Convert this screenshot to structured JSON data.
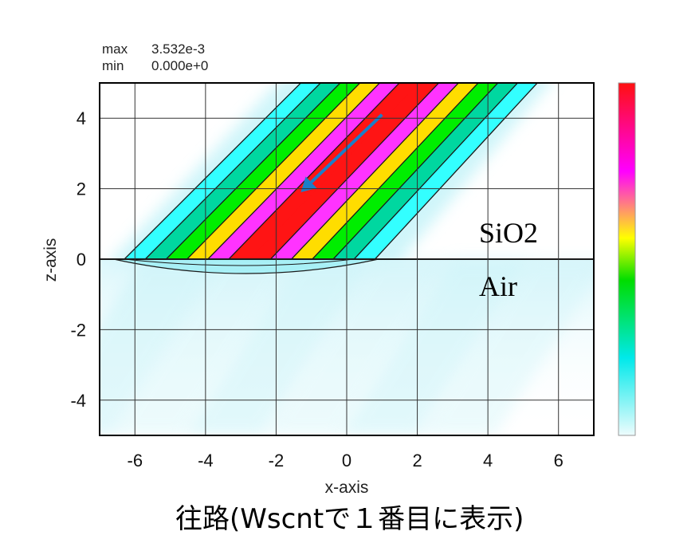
{
  "header": {
    "max_label": "max",
    "max_value": "3.532e-3",
    "min_label": "min",
    "min_value": "0.000e+0"
  },
  "annotations": {
    "upper_region": "SiO2",
    "lower_region": "Air"
  },
  "caption": "往路(Wscntで１番目に表示)",
  "chart_data": {
    "type": "heatmap",
    "xlabel": "x-axis",
    "ylabel": "z-axis",
    "xlim": [
      -7,
      7
    ],
    "ylim": [
      -5,
      5
    ],
    "x_ticks": [
      -6,
      -4,
      -2,
      0,
      2,
      4,
      6
    ],
    "y_ticks": [
      4,
      2,
      0,
      -2,
      -4
    ],
    "grid": true,
    "colorbar": {
      "min": 0.0,
      "max": 0.003532,
      "colors": [
        "#e8fbfd",
        "#00eaea",
        "#00dd00",
        "#ffff00",
        "#ff00ff",
        "#ff1010"
      ]
    },
    "interface_z": 0,
    "beam": {
      "direction": "incident from upper right toward lower left",
      "bottom_x_range": [
        -6.3,
        0.8
      ],
      "top_x_range": [
        -1.3,
        5.4
      ],
      "top_z": 5,
      "bottom_z": 0,
      "band_colors": [
        "#33ffff",
        "#00d7a0",
        "#00ee00",
        "#ffdd00",
        "#ff33ff",
        "#ff1414",
        "#ff1414",
        "#ff33ff",
        "#ffdd00",
        "#00ee00",
        "#00d7a0",
        "#33ffff"
      ]
    },
    "arrow": {
      "from": [
        1.0,
        4.1
      ],
      "to": [
        -1.3,
        1.9
      ],
      "color": "#1a7fc9"
    }
  }
}
